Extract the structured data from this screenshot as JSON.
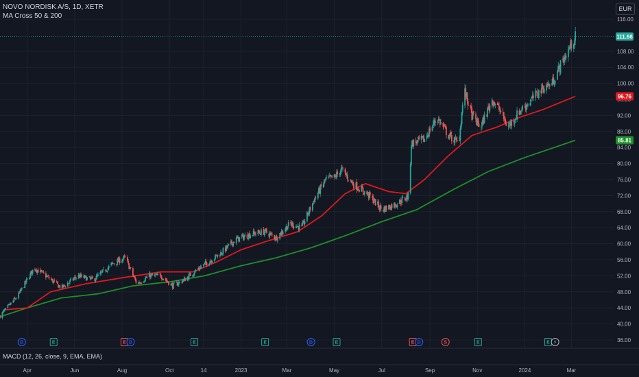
{
  "header": {
    "title": "NOVO NORDISK A/S, 1D, XETR",
    "indicator": "MA Cross 50 & 200",
    "currency": "EUR"
  },
  "macd_label": "MACD (12, 26, close, 9, EMA, EMA)",
  "colors": {
    "up": "#26a69a",
    "down": "#ef5350",
    "ma50": "#e0191d",
    "ma200": "#1e8f2a",
    "background": "#131722",
    "dividend": "#2962ff",
    "earnings": "#26a69a",
    "split": "#ef5350"
  },
  "chart_data": {
    "type": "candlestick",
    "title": "NOVO NORDISK A/S, 1D, XETR",
    "ylim": [
      36,
      116
    ],
    "y_ticks": [
      36,
      40,
      44,
      48,
      52,
      56,
      60,
      64,
      68,
      72,
      76,
      80,
      84,
      88,
      92,
      96,
      100,
      104,
      108,
      116
    ],
    "x_labels": [
      "Apr",
      "Jun",
      "Aug",
      "Oct",
      "14",
      "2023",
      "Mar",
      "May",
      "Jul",
      "Sep",
      "Nov",
      "2024",
      "Mar"
    ],
    "x_label_values": [
      "2022-04-01",
      "2022-06-01",
      "2022-08-01",
      "2022-10-01",
      "2022-11-14",
      "2023-01-01",
      "2023-03-01",
      "2023-05-01",
      "2023-07-01",
      "2023-09-01",
      "2023-11-01",
      "2024-01-01",
      "2024-03-01"
    ],
    "x_range": [
      "2022-02-25",
      "2024-03-20"
    ],
    "price_path": [
      [
        "2022-02-25",
        42
      ],
      [
        "2022-03-20",
        47
      ],
      [
        "2022-04-10",
        54
      ],
      [
        "2022-04-25",
        52
      ],
      [
        "2022-05-15",
        49
      ],
      [
        "2022-06-05",
        52
      ],
      [
        "2022-06-25",
        51
      ],
      [
        "2022-07-20",
        55
      ],
      [
        "2022-08-05",
        56.5
      ],
      [
        "2022-08-20",
        50
      ],
      [
        "2022-09-05",
        52
      ],
      [
        "2022-09-20",
        52
      ],
      [
        "2022-10-05",
        49.5
      ],
      [
        "2022-10-20",
        51
      ],
      [
        "2022-11-05",
        53.5
      ],
      [
        "2022-11-20",
        55.5
      ],
      [
        "2022-12-05",
        57.5
      ],
      [
        "2022-12-25",
        61
      ],
      [
        "2023-01-15",
        62.5
      ],
      [
        "2023-02-01",
        63
      ],
      [
        "2023-02-15",
        61.5
      ],
      [
        "2023-03-05",
        65
      ],
      [
        "2023-03-20",
        64
      ],
      [
        "2023-04-05",
        71
      ],
      [
        "2023-04-20",
        76
      ],
      [
        "2023-05-01",
        76.5
      ],
      [
        "2023-05-10",
        78.5
      ],
      [
        "2023-05-25",
        75
      ],
      [
        "2023-06-15",
        72
      ],
      [
        "2023-07-01",
        68.5
      ],
      [
        "2023-07-20",
        70
      ],
      [
        "2023-08-05",
        72
      ],
      [
        "2023-08-08",
        85
      ],
      [
        "2023-08-25",
        86
      ],
      [
        "2023-09-10",
        91.5
      ],
      [
        "2023-09-25",
        87
      ],
      [
        "2023-10-08",
        85
      ],
      [
        "2023-10-15",
        98.5
      ],
      [
        "2023-10-25",
        92
      ],
      [
        "2023-11-05",
        89
      ],
      [
        "2023-11-20",
        96
      ],
      [
        "2023-12-01",
        93
      ],
      [
        "2023-12-10",
        89
      ],
      [
        "2023-12-25",
        93
      ],
      [
        "2024-01-10",
        96
      ],
      [
        "2024-01-25",
        99
      ],
      [
        "2024-02-05",
        100
      ],
      [
        "2024-02-12",
        103
      ],
      [
        "2024-02-20",
        106
      ],
      [
        "2024-02-28",
        109
      ],
      [
        "2024-03-06",
        111.66
      ]
    ],
    "series": [
      {
        "name": "MA 50",
        "values": [
          [
            "2022-03-01",
            43.5
          ],
          [
            "2022-04-01",
            44
          ],
          [
            "2022-05-01",
            48
          ],
          [
            "2022-06-15",
            50
          ],
          [
            "2022-08-01",
            51.5
          ],
          [
            "2022-09-20",
            53
          ],
          [
            "2022-11-01",
            53
          ],
          [
            "2022-12-01",
            55.5
          ],
          [
            "2023-01-01",
            58.5
          ],
          [
            "2023-02-01",
            60.5
          ],
          [
            "2023-03-15",
            63
          ],
          [
            "2023-04-15",
            67
          ],
          [
            "2023-05-15",
            72.5
          ],
          [
            "2023-06-10",
            75
          ],
          [
            "2023-07-10",
            73
          ],
          [
            "2023-08-01",
            72.5
          ],
          [
            "2023-08-25",
            76
          ],
          [
            "2023-09-25",
            82
          ],
          [
            "2023-10-25",
            87
          ],
          [
            "2023-11-25",
            89
          ],
          [
            "2023-12-25",
            91.5
          ],
          [
            "2024-01-25",
            93.5
          ],
          [
            "2024-03-06",
            96.76
          ]
        ]
      },
      {
        "name": "MA 200",
        "values": [
          [
            "2022-02-25",
            41.8
          ],
          [
            "2022-04-01",
            44
          ],
          [
            "2022-05-15",
            46.5
          ],
          [
            "2022-07-01",
            47.5
          ],
          [
            "2022-08-15",
            49.5
          ],
          [
            "2022-10-01",
            50.5
          ],
          [
            "2022-11-15",
            52
          ],
          [
            "2023-01-01",
            54.5
          ],
          [
            "2023-02-15",
            56.5
          ],
          [
            "2023-04-01",
            59
          ],
          [
            "2023-05-15",
            62
          ],
          [
            "2023-07-01",
            65.5
          ],
          [
            "2023-08-15",
            68.5
          ],
          [
            "2023-10-01",
            73.5
          ],
          [
            "2023-11-15",
            78
          ],
          [
            "2024-01-01",
            81.5
          ],
          [
            "2024-03-06",
            85.81
          ]
        ]
      }
    ],
    "price_labels": [
      {
        "value": 111.66,
        "text": "111.66",
        "color": "#26a69a"
      },
      {
        "value": 96.76,
        "text": "96.76",
        "color": "#e0191d"
      },
      {
        "value": 85.81,
        "text": "85.81",
        "color": "#1e8f2a"
      }
    ],
    "event_markers": [
      {
        "date": "2022-03-25",
        "label": "D",
        "kind": "dividend"
      },
      {
        "date": "2022-05-05",
        "label": "E",
        "kind": "earnings"
      },
      {
        "date": "2022-08-04",
        "label": "E",
        "kind": "split"
      },
      {
        "date": "2022-08-12",
        "label": "D",
        "kind": "dividend"
      },
      {
        "date": "2022-11-02",
        "label": "E",
        "kind": "earnings"
      },
      {
        "date": "2023-02-01",
        "label": "E",
        "kind": "earnings"
      },
      {
        "date": "2023-04-01",
        "label": "D",
        "kind": "dividend"
      },
      {
        "date": "2023-05-04",
        "label": "E",
        "kind": "earnings"
      },
      {
        "date": "2023-08-10",
        "label": "E",
        "kind": "split"
      },
      {
        "date": "2023-08-18",
        "label": "D",
        "kind": "dividend"
      },
      {
        "date": "2023-09-21",
        "label": "S",
        "kind": "split"
      },
      {
        "date": "2023-11-02",
        "label": "E",
        "kind": "earnings"
      },
      {
        "date": "2024-01-31",
        "label": "E",
        "kind": "earnings"
      },
      {
        "date": "2024-02-09",
        "label": "⚡",
        "kind": "flash"
      }
    ]
  }
}
